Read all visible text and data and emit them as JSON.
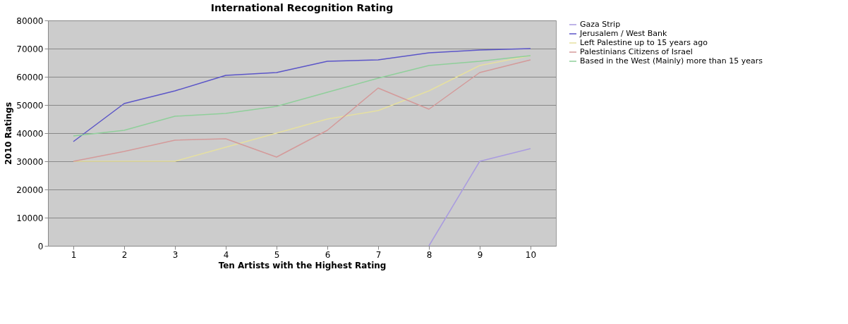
{
  "chart_data": {
    "type": "line",
    "title": "International Recognition Rating",
    "xlabel": "Ten Artists with the Highest Rating",
    "ylabel": "2010 Ratings",
    "categories": [
      "1",
      "2",
      "3",
      "4",
      "5",
      "6",
      "7",
      "8",
      "9",
      "10"
    ],
    "series": [
      {
        "name": "Gaza Strip",
        "color": "#a99be0",
        "values": [
          null,
          null,
          null,
          null,
          null,
          null,
          null,
          0,
          30000,
          34500
        ]
      },
      {
        "name": "Jerusalem / West Bank",
        "color": "#5b55c8",
        "values": [
          37000,
          50500,
          55000,
          60500,
          61500,
          65500,
          66000,
          68500,
          69500,
          70000
        ]
      },
      {
        "name": "Left Palestine up to 15 years ago",
        "color": "#e6e0a0",
        "values": [
          30000,
          30000,
          30000,
          35000,
          40000,
          45000,
          48000,
          55000,
          64000,
          67500
        ]
      },
      {
        "name": "Palestinians Citizens of Israel",
        "color": "#d49a9a",
        "values": [
          30000,
          33500,
          37500,
          38000,
          31500,
          41000,
          56000,
          48500,
          61500,
          66000
        ]
      },
      {
        "name": "Based in the West (Mainly) more than 15 years",
        "color": "#8fcf9a",
        "values": [
          39000,
          41000,
          46000,
          47000,
          49500,
          54500,
          59500,
          64000,
          65500,
          67500
        ]
      }
    ],
    "ylim": [
      0,
      80000
    ],
    "yticks": [
      0,
      10000,
      20000,
      30000,
      40000,
      50000,
      60000,
      70000,
      80000
    ],
    "grid": "y",
    "legend": "right",
    "marker": "none",
    "line_style": "solid"
  }
}
